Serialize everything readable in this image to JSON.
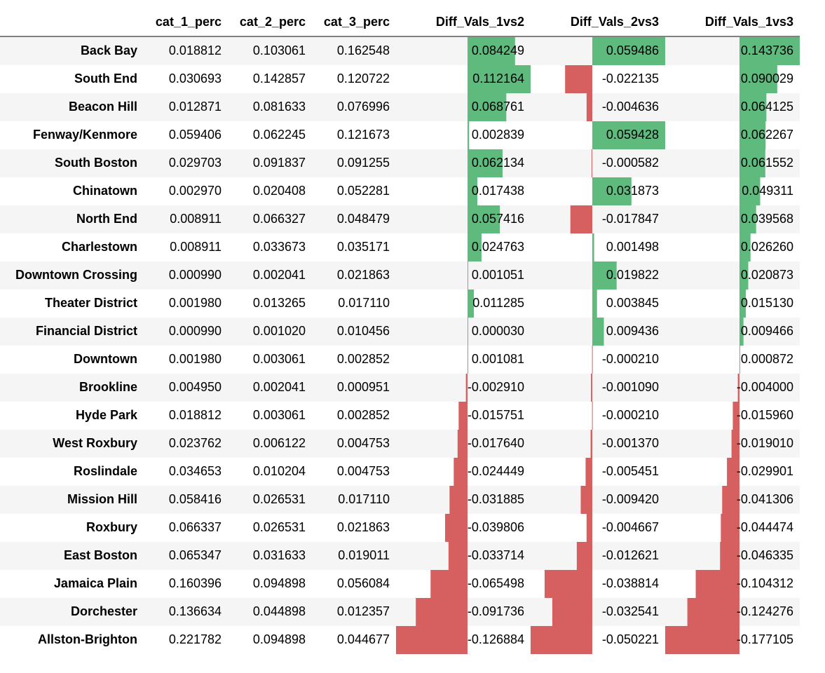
{
  "chart_data": {
    "type": "table",
    "columns": [
      "cat_1_perc",
      "cat_2_perc",
      "cat_3_perc",
      "Diff_Vals_1vs2",
      "Diff_Vals_2vs3",
      "Diff_Vals_1vs3"
    ],
    "bar_columns": [
      "Diff_Vals_1vs2",
      "Diff_Vals_2vs3",
      "Diff_Vals_1vs3"
    ],
    "colors": {
      "positive": "#5fba7d",
      "negative": "#d65f5f",
      "stripe": "#f5f5f5",
      "white": "#ffffff"
    },
    "rows": [
      {
        "label": "Back Bay",
        "values": [
          "0.018812",
          "0.103061",
          "0.162548",
          "0.084249",
          "0.059486",
          "0.143736"
        ]
      },
      {
        "label": "South End",
        "values": [
          "0.030693",
          "0.142857",
          "0.120722",
          "0.112164",
          "-0.022135",
          "0.090029"
        ]
      },
      {
        "label": "Beacon Hill",
        "values": [
          "0.012871",
          "0.081633",
          "0.076996",
          "0.068761",
          "-0.004636",
          "0.064125"
        ]
      },
      {
        "label": "Fenway/Kenmore",
        "values": [
          "0.059406",
          "0.062245",
          "0.121673",
          "0.002839",
          "0.059428",
          "0.062267"
        ]
      },
      {
        "label": "South Boston",
        "values": [
          "0.029703",
          "0.091837",
          "0.091255",
          "0.062134",
          "-0.000582",
          "0.061552"
        ]
      },
      {
        "label": "Chinatown",
        "values": [
          "0.002970",
          "0.020408",
          "0.052281",
          "0.017438",
          "0.031873",
          "0.049311"
        ]
      },
      {
        "label": "North End",
        "values": [
          "0.008911",
          "0.066327",
          "0.048479",
          "0.057416",
          "-0.017847",
          "0.039568"
        ]
      },
      {
        "label": "Charlestown",
        "values": [
          "0.008911",
          "0.033673",
          "0.035171",
          "0.024763",
          "0.001498",
          "0.026260"
        ]
      },
      {
        "label": "Downtown Crossing",
        "values": [
          "0.000990",
          "0.002041",
          "0.021863",
          "0.001051",
          "0.019822",
          "0.020873"
        ]
      },
      {
        "label": "Theater District",
        "values": [
          "0.001980",
          "0.013265",
          "0.017110",
          "0.011285",
          "0.003845",
          "0.015130"
        ]
      },
      {
        "label": "Financial District",
        "values": [
          "0.000990",
          "0.001020",
          "0.010456",
          "0.000030",
          "0.009436",
          "0.009466"
        ]
      },
      {
        "label": "Downtown",
        "values": [
          "0.001980",
          "0.003061",
          "0.002852",
          "0.001081",
          "-0.000210",
          "0.000872"
        ]
      },
      {
        "label": "Brookline",
        "values": [
          "0.004950",
          "0.002041",
          "0.000951",
          "-0.002910",
          "-0.001090",
          "-0.004000"
        ]
      },
      {
        "label": "Hyde Park",
        "values": [
          "0.018812",
          "0.003061",
          "0.002852",
          "-0.015751",
          "-0.000210",
          "-0.015960"
        ]
      },
      {
        "label": "West Roxbury",
        "values": [
          "0.023762",
          "0.006122",
          "0.004753",
          "-0.017640",
          "-0.001370",
          "-0.019010"
        ]
      },
      {
        "label": "Roslindale",
        "values": [
          "0.034653",
          "0.010204",
          "0.004753",
          "-0.024449",
          "-0.005451",
          "-0.029901"
        ]
      },
      {
        "label": "Mission Hill",
        "values": [
          "0.058416",
          "0.026531",
          "0.017110",
          "-0.031885",
          "-0.009420",
          "-0.041306"
        ]
      },
      {
        "label": "Roxbury",
        "values": [
          "0.066337",
          "0.026531",
          "0.021863",
          "-0.039806",
          "-0.004667",
          "-0.044474"
        ]
      },
      {
        "label": "East Boston",
        "values": [
          "0.065347",
          "0.031633",
          "0.019011",
          "-0.033714",
          "-0.012621",
          "-0.046335"
        ]
      },
      {
        "label": "Jamaica Plain",
        "values": [
          "0.160396",
          "0.094898",
          "0.056084",
          "-0.065498",
          "-0.038814",
          "-0.104312"
        ]
      },
      {
        "label": "Dorchester",
        "values": [
          "0.136634",
          "0.044898",
          "0.012357",
          "-0.091736",
          "-0.032541",
          "-0.124276"
        ]
      },
      {
        "label": "Allston-Brighton",
        "values": [
          "0.221782",
          "0.094898",
          "0.044677",
          "-0.126884",
          "-0.050221",
          "-0.177105"
        ]
      }
    ]
  }
}
